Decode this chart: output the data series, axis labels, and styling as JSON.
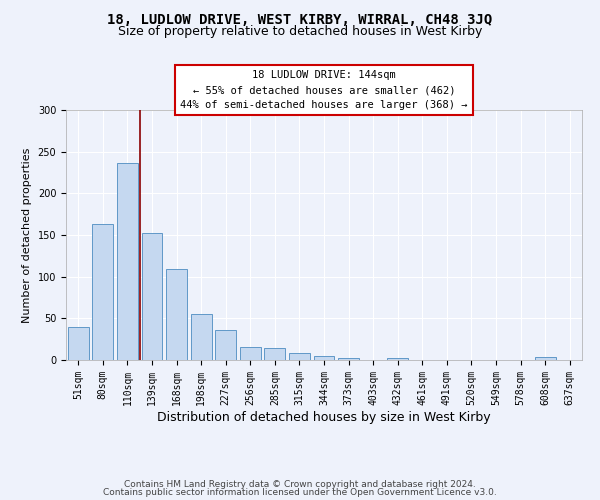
{
  "title": "18, LUDLOW DRIVE, WEST KIRBY, WIRRAL, CH48 3JQ",
  "subtitle": "Size of property relative to detached houses in West Kirby",
  "xlabel": "Distribution of detached houses by size in West Kirby",
  "ylabel": "Number of detached properties",
  "categories": [
    "51sqm",
    "80sqm",
    "110sqm",
    "139sqm",
    "168sqm",
    "198sqm",
    "227sqm",
    "256sqm",
    "285sqm",
    "315sqm",
    "344sqm",
    "373sqm",
    "403sqm",
    "432sqm",
    "461sqm",
    "491sqm",
    "520sqm",
    "549sqm",
    "578sqm",
    "608sqm",
    "637sqm"
  ],
  "values": [
    40,
    163,
    236,
    153,
    109,
    55,
    36,
    16,
    14,
    8,
    5,
    2,
    0,
    3,
    0,
    0,
    0,
    0,
    0,
    4,
    0
  ],
  "bar_color": "#c5d8f0",
  "bar_edge_color": "#6098c8",
  "background_color": "#eef2fb",
  "grid_color": "#ffffff",
  "vline_x": 2.5,
  "vline_color": "#8b0000",
  "annotation_text": "18 LUDLOW DRIVE: 144sqm\n← 55% of detached houses are smaller (462)\n44% of semi-detached houses are larger (368) →",
  "annotation_box_color": "#ffffff",
  "annotation_box_edge_color": "#cc0000",
  "footer_line1": "Contains HM Land Registry data © Crown copyright and database right 2024.",
  "footer_line2": "Contains public sector information licensed under the Open Government Licence v3.0.",
  "ylim": [
    0,
    300
  ],
  "title_fontsize": 10,
  "subtitle_fontsize": 9,
  "xlabel_fontsize": 9,
  "ylabel_fontsize": 8,
  "tick_fontsize": 7,
  "annotation_fontsize": 7.5,
  "footer_fontsize": 6.5
}
